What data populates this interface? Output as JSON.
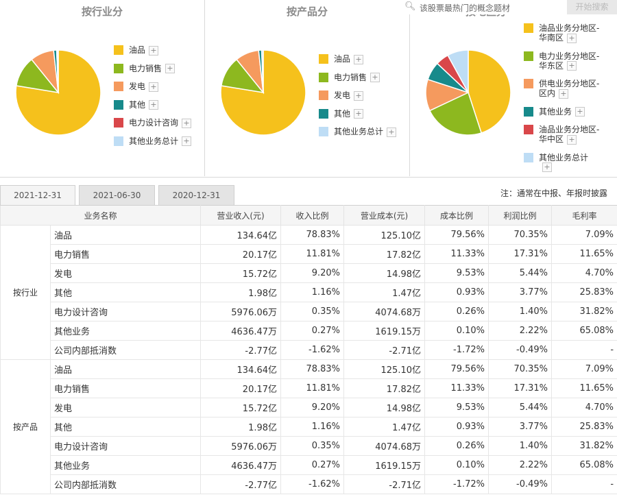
{
  "search": {
    "placeholder": "该股票最热门的概念题材",
    "button": "开始搜索"
  },
  "panels": [
    {
      "title": "按行业分",
      "legend": [
        "油品",
        "电力销售",
        "发电",
        "其他",
        "电力设计咨询",
        "其他业务总计"
      ],
      "slices": [
        {
          "label": "油品",
          "value": 78.83,
          "color": "#F5C11C"
        },
        {
          "label": "电力销售",
          "value": 11.81,
          "color": "#8DB81F"
        },
        {
          "label": "发电",
          "value": 9.2,
          "color": "#F59A5E"
        },
        {
          "label": "其他",
          "value": 1.16,
          "color": "#178A8B"
        },
        {
          "label": "电力设计咨询",
          "value": 0.35,
          "color": "#D9474A"
        },
        {
          "label": "其他业务总计",
          "value": 0.27,
          "color": "#BEDDF5"
        }
      ]
    },
    {
      "title": "按产品分",
      "legend": [
        "油品",
        "电力销售",
        "发电",
        "其他",
        "其他业务总计"
      ],
      "slices": [
        {
          "label": "油品",
          "value": 78.83,
          "color": "#F5C11C"
        },
        {
          "label": "电力销售",
          "value": 11.81,
          "color": "#8DB81F"
        },
        {
          "label": "发电",
          "value": 9.2,
          "color": "#F59A5E"
        },
        {
          "label": "其他",
          "value": 1.16,
          "color": "#178A8B"
        },
        {
          "label": "其他业务总计",
          "value": 0.62,
          "color": "#BEDDF5"
        }
      ]
    },
    {
      "title": "按地区分",
      "legend": [
        "油品业务分地区-华南区",
        "电力业务分地区-华东区",
        "供电业务分地区-区内",
        "其他业务",
        "油品业务分地区-华中区",
        "其他业务总计"
      ],
      "slices": [
        {
          "label": "油品业务分地区-华南区",
          "value": 45,
          "color": "#F5C11C"
        },
        {
          "label": "电力业务分地区-华东区",
          "value": 23,
          "color": "#8DB81F"
        },
        {
          "label": "供电业务分地区-区内",
          "value": 12,
          "color": "#F59A5E"
        },
        {
          "label": "其他业务",
          "value": 7,
          "color": "#178A8B"
        },
        {
          "label": "油品业务分地区-华中区",
          "value": 5,
          "color": "#D9474A"
        },
        {
          "label": "其他业务总计",
          "value": 8,
          "color": "#BEDDF5"
        }
      ]
    }
  ],
  "tabs": [
    "2021-12-31",
    "2021-06-30",
    "2020-12-31"
  ],
  "note": "注：通常在中报、年报时披露",
  "table": {
    "headers": [
      "业务名称",
      "营业收入(元)",
      "收入比例",
      "营业成本(元)",
      "成本比例",
      "利润比例",
      "毛利率"
    ],
    "groups": [
      {
        "label": "按行业",
        "rows": [
          [
            "油品",
            "134.64亿",
            "78.83%",
            "125.10亿",
            "79.56%",
            "70.35%",
            "7.09%"
          ],
          [
            "电力销售",
            "20.17亿",
            "11.81%",
            "17.82亿",
            "11.33%",
            "17.31%",
            "11.65%"
          ],
          [
            "发电",
            "15.72亿",
            "9.20%",
            "14.98亿",
            "9.53%",
            "5.44%",
            "4.70%"
          ],
          [
            "其他",
            "1.98亿",
            "1.16%",
            "1.47亿",
            "0.93%",
            "3.77%",
            "25.83%"
          ],
          [
            "电力设计咨询",
            "5976.06万",
            "0.35%",
            "4074.68万",
            "0.26%",
            "1.40%",
            "31.82%"
          ],
          [
            "其他业务",
            "4636.47万",
            "0.27%",
            "1619.15万",
            "0.10%",
            "2.22%",
            "65.08%"
          ],
          [
            "公司内部抵消数",
            "-2.77亿",
            "-1.62%",
            "-2.71亿",
            "-1.72%",
            "-0.49%",
            "-"
          ]
        ]
      },
      {
        "label": "按产品",
        "rows": [
          [
            "油品",
            "134.64亿",
            "78.83%",
            "125.10亿",
            "79.56%",
            "70.35%",
            "7.09%"
          ],
          [
            "电力销售",
            "20.17亿",
            "11.81%",
            "17.82亿",
            "11.33%",
            "17.31%",
            "11.65%"
          ],
          [
            "发电",
            "15.72亿",
            "9.20%",
            "14.98亿",
            "9.53%",
            "5.44%",
            "4.70%"
          ],
          [
            "其他",
            "1.98亿",
            "1.16%",
            "1.47亿",
            "0.93%",
            "3.77%",
            "25.83%"
          ],
          [
            "电力设计咨询",
            "5976.06万",
            "0.35%",
            "4074.68万",
            "0.26%",
            "1.40%",
            "31.82%"
          ],
          [
            "其他业务",
            "4636.47万",
            "0.27%",
            "1619.15万",
            "0.10%",
            "2.22%",
            "65.08%"
          ],
          [
            "公司内部抵消数",
            "-2.77亿",
            "-1.62%",
            "-2.71亿",
            "-1.72%",
            "-0.49%",
            "-"
          ]
        ]
      }
    ]
  }
}
